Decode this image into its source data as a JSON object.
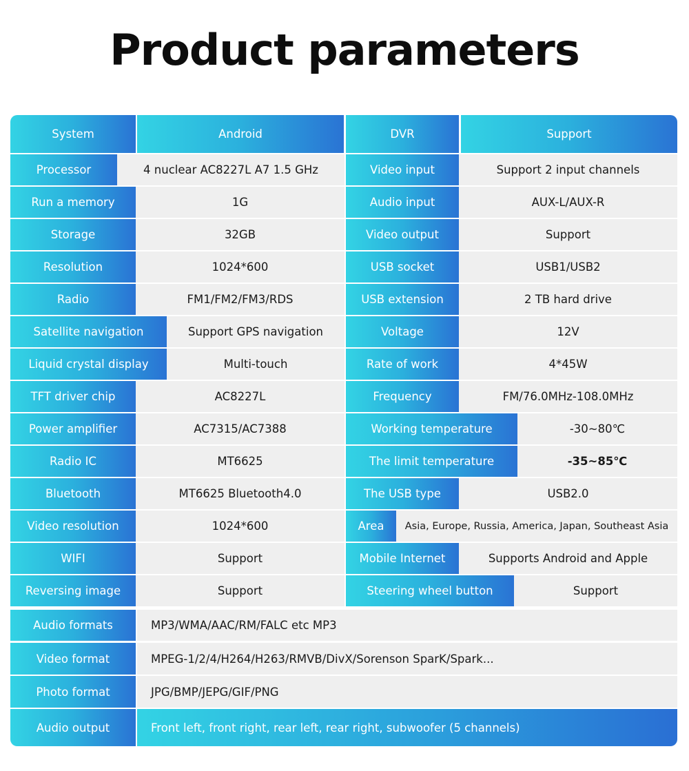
{
  "title": "Product parameters",
  "header": {
    "c1": "System",
    "c2": "Android",
    "c3": "DVR",
    "c4": "Support"
  },
  "rows": [
    {
      "l1": "Processor",
      "v1": "4 nuclear   AC8227L A7 1.5 GHz",
      "l2": "Video input",
      "v2": "Support 2 input channels"
    },
    {
      "l1": "Run a memory",
      "v1": "1G",
      "l2": "Audio input",
      "v2": "AUX-L/AUX-R"
    },
    {
      "l1": "Storage",
      "v1": "32GB",
      "l2": "Video output",
      "v2": "Support"
    },
    {
      "l1": "Resolution",
      "v1": "1024*600",
      "l2": "USB socket",
      "v2": "USB1/USB2"
    },
    {
      "l1": "Radio",
      "v1": "FM1/FM2/FM3/RDS",
      "l2": "USB extension",
      "v2": "2 TB hard drive"
    },
    {
      "l1": "Satellite navigation",
      "v1": "Support GPS navigation",
      "l2": "Voltage",
      "v2": "12V"
    },
    {
      "l1": "Liquid crystal display",
      "v1": "Multi-touch",
      "l2": "Rate of work",
      "v2": "4*45W"
    },
    {
      "l1": "TFT driver chip",
      "v1": "AC8227L",
      "l2": "Frequency",
      "v2": "FM/76.0MHz-108.0MHz"
    },
    {
      "l1": "Power amplifier",
      "v1": "AC7315/AC7388",
      "l2": "Working temperature",
      "v2": "-30~80℃"
    },
    {
      "l1": "Radio IC",
      "v1": "MT6625",
      "l2": "The limit temperature",
      "v2": "-35~85℃"
    },
    {
      "l1": "Bluetooth",
      "v1": "MT6625 Bluetooth4.0",
      "l2": "The USB type",
      "v2": "USB2.0"
    },
    {
      "l1": "Video resolution",
      "v1": "1024*600",
      "l2": "Area",
      "v2": "Asia, Europe, Russia, America, Japan, Southeast Asia"
    },
    {
      "l1": "WIFI",
      "v1": "Support",
      "l2": "Mobile Internet",
      "v2": "Supports Android and Apple"
    },
    {
      "l1": "Reversing image",
      "v1": "Support",
      "l2": "Steering wheel button",
      "v2": "Support"
    }
  ],
  "wide_rows": [
    {
      "label": "Audio formats",
      "value": "MP3/WMA/AAC/RM/FALC etc MP3"
    },
    {
      "label": "Video format",
      "value": "MPEG-1/2/4/H264/H263/RMVB/DivX/Sorenson SparK/Spark..."
    },
    {
      "label": "Photo format",
      "value": "JPG/BMP/JEPG/GIF/PNG"
    }
  ],
  "audio_output": {
    "label": "Audio output",
    "value": "Front left, front right, rear left, rear right, subwoofer (5 channels)"
  },
  "colors": {
    "accent_light": "#33d3e4",
    "accent_dark": "#2a73d4",
    "cell_bg": "#efefef"
  }
}
